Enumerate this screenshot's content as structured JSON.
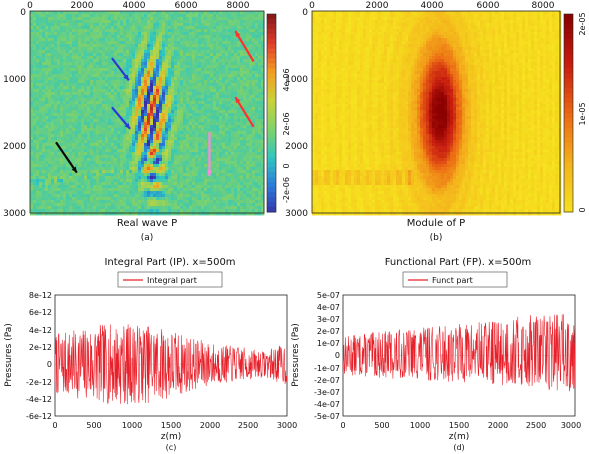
{
  "chart_data": [
    {
      "type": "heatmap",
      "panel": "(a)",
      "xlabel": "Real wave P",
      "x_ticks": [
        "0",
        "2000",
        "4000",
        "6000",
        "8000"
      ],
      "y_ticks": [
        "0",
        "1000",
        "2000",
        "3000"
      ],
      "xlim": [
        0,
        9000
      ],
      "ylim": [
        3000,
        0
      ],
      "colorbar_ticks": [
        "4e-06",
        "2e-06",
        "0",
        "-2e-06"
      ],
      "colorbar_range": [
        -3e-06,
        5e-06
      ],
      "colormap": [
        "#3a2fa8",
        "#2b7bd8",
        "#2fc7c0",
        "#7fd26a",
        "#c8d23a",
        "#f2a020",
        "#e2402a",
        "#8a1a1a"
      ],
      "background_value": 0.0,
      "arrows": [
        {
          "color": "#ff3030",
          "from": [
            8600,
            750
          ],
          "to": [
            7900,
            300
          ]
        },
        {
          "color": "#ff3030",
          "from": [
            8600,
            1720
          ],
          "to": [
            7900,
            1280
          ]
        },
        {
          "color": "#2a3ad8",
          "from": [
            3150,
            700
          ],
          "to": [
            3800,
            1030
          ]
        },
        {
          "color": "#2a3ad8",
          "from": [
            3150,
            1430
          ],
          "to": [
            3850,
            1750
          ]
        },
        {
          "color": "#0a0a0a",
          "from": [
            1000,
            1950
          ],
          "to": [
            1800,
            2400
          ]
        },
        {
          "color": "#ff88dd",
          "from": [
            6900,
            1800
          ],
          "to": [
            6900,
            2450
          ]
        }
      ]
    },
    {
      "type": "heatmap",
      "panel": "(b)",
      "xlabel": "Module of P",
      "x_ticks": [
        "0",
        "2000",
        "4000",
        "6000",
        "8000"
      ],
      "y_ticks": [
        "0",
        "1000",
        "2000",
        "3000"
      ],
      "xlim": [
        0,
        9000
      ],
      "ylim": [
        3000,
        0
      ],
      "colorbar_ticks": [
        "2e-05",
        "1e-05",
        "0"
      ],
      "colorbar_range": [
        0,
        2e-05
      ],
      "colormap": [
        "#f6e21e",
        "#f4b41c",
        "#ec6a14",
        "#c81e10",
        "#8b0000"
      ],
      "peak": {
        "x": 4600,
        "y": 1500
      }
    },
    {
      "type": "line",
      "panel": "(c)",
      "title": "Integral Part (IP). x=500m",
      "xlabel": "z(m)",
      "ylabel": "Pressures (Pa)",
      "legend": "Integral part",
      "xlim": [
        0,
        3000
      ],
      "ylim": [
        -6e-12,
        8e-12
      ],
      "x_ticks": [
        "0",
        "500",
        "1000",
        "1500",
        "2000",
        "2500",
        "3000"
      ],
      "y_ticks": [
        "8e-12",
        "6e-12",
        "4e-12",
        "2e-12",
        "0",
        "-2e-12",
        "-4e-12",
        "-6e-12"
      ],
      "series": [
        {
          "color": "#e8202a",
          "x_step": 5,
          "envelope": [
            [
              0,
              3.5e-12
            ],
            [
              300,
              4e-12
            ],
            [
              600,
              4.6e-12
            ],
            [
              900,
              4.7e-12
            ],
            [
              1200,
              4.5e-12
            ],
            [
              1500,
              4e-12
            ],
            [
              1800,
              3e-12
            ],
            [
              2100,
              2.3e-12
            ],
            [
              2400,
              2e-12
            ],
            [
              2700,
              1.5e-12
            ],
            [
              3000,
              2.5e-12
            ]
          ],
          "bias": [
            [
              0,
              0.0
            ],
            [
              3000,
              0.0
            ]
          ],
          "seed": 7
        }
      ]
    },
    {
      "type": "line",
      "panel": "(d)",
      "title": "Functional Part (FP). x=500m",
      "xlabel": "z(m)",
      "ylabel": "Pressures (Pa)",
      "legend": "Funct part",
      "xlim": [
        0,
        3000
      ],
      "ylim": [
        -5e-07,
        5e-07
      ],
      "x_ticks": [
        "0",
        "500",
        "1000",
        "1500",
        "2000",
        "2500",
        "3000"
      ],
      "y_ticks": [
        "5e-07",
        "4e-07",
        "3e-07",
        "2e-07",
        "1e-07",
        "0",
        "-1e-07",
        "-2e-07",
        "-3e-07",
        "-4e-07",
        "-5e-07"
      ],
      "series": [
        {
          "color": "#e8202a",
          "x_step": 5,
          "envelope": [
            [
              0,
              1.6e-07
            ],
            [
              300,
              1.8e-07
            ],
            [
              600,
              2e-07
            ],
            [
              900,
              2.1e-07
            ],
            [
              1200,
              2.3e-07
            ],
            [
              1500,
              2.4e-07
            ],
            [
              1800,
              2.6e-07
            ],
            [
              2100,
              2.8e-07
            ],
            [
              2400,
              3e-07
            ],
            [
              2700,
              3.2e-07
            ],
            [
              3000,
              3.4e-07
            ]
          ],
          "bias": [
            [
              0,
              0.0
            ],
            [
              3000,
              4e-08
            ]
          ],
          "seed": 13
        }
      ]
    }
  ]
}
